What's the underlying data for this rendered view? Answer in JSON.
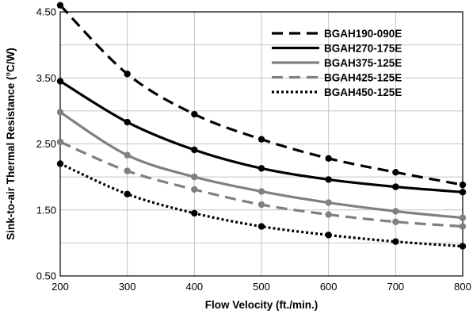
{
  "chart_data": {
    "type": "line",
    "title": "",
    "xlabel": "Flow Velocity (ft./min.)",
    "ylabel": "Sink-to-air Thermal Resistance (°C/W)",
    "xlim": [
      200,
      800
    ],
    "ylim": [
      0.5,
      4.5
    ],
    "x": [
      200,
      300,
      400,
      500,
      600,
      700,
      800
    ],
    "x_ticks": [
      "200",
      "300",
      "400",
      "500",
      "600",
      "700",
      "800"
    ],
    "y_ticks": [
      {
        "value": 0.5,
        "label": "0.50"
      },
      {
        "value": 1.5,
        "label": "1.50"
      },
      {
        "value": 2.5,
        "label": "2.50"
      },
      {
        "value": 3.5,
        "label": "3.50"
      },
      {
        "value": 4.5,
        "label": "4.50"
      }
    ],
    "grid": true,
    "legend_position": "top-right",
    "series": [
      {
        "name": "BGAH190-090E",
        "color": "#000000",
        "style": "dashed",
        "values": [
          4.6,
          3.56,
          2.95,
          2.57,
          2.28,
          2.07,
          1.88
        ]
      },
      {
        "name": "BGAH270-175E",
        "color": "#000000",
        "style": "solid",
        "values": [
          3.45,
          2.83,
          2.41,
          2.13,
          1.96,
          1.85,
          1.77
        ]
      },
      {
        "name": "BGAH375-125E",
        "color": "#808080",
        "style": "solid",
        "values": [
          2.98,
          2.33,
          2.0,
          1.78,
          1.61,
          1.48,
          1.38
        ]
      },
      {
        "name": "BGAH425-125E",
        "color": "#808080",
        "style": "dashed",
        "values": [
          2.53,
          2.09,
          1.81,
          1.58,
          1.43,
          1.32,
          1.25
        ]
      },
      {
        "name": "BGAH450-125E",
        "color": "#000000",
        "style": "dotted",
        "values": [
          2.2,
          1.74,
          1.45,
          1.25,
          1.12,
          1.02,
          0.95
        ]
      }
    ]
  }
}
